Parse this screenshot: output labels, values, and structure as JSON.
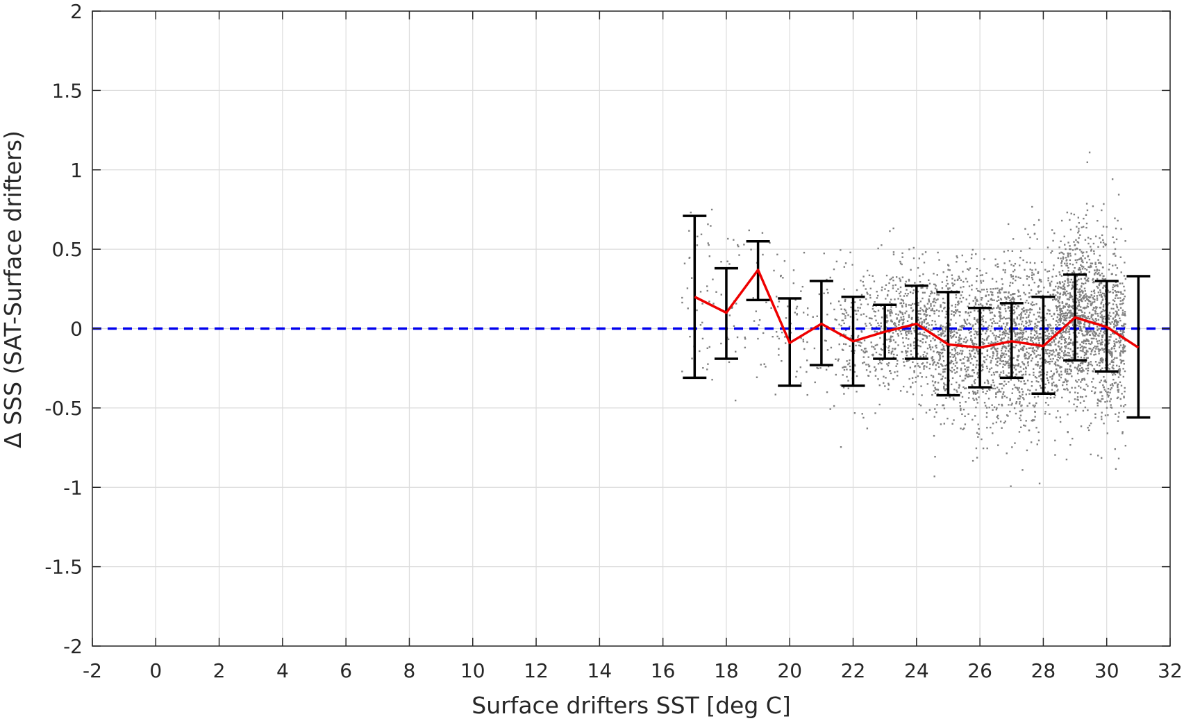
{
  "chart_data": {
    "type": "scatter",
    "xlabel": "Surface drifters SST [deg C]",
    "ylabel": "Δ SSS (SAT-Surface drifters)",
    "xlim": [
      -2,
      32
    ],
    "ylim": [
      -2,
      2
    ],
    "x_ticks": [
      "-2",
      "0",
      "2",
      "4",
      "6",
      "8",
      "10",
      "12",
      "14",
      "16",
      "18",
      "20",
      "22",
      "24",
      "26",
      "28",
      "30",
      "32"
    ],
    "y_ticks": [
      "2",
      "1.5",
      "1",
      "0.5",
      "0",
      "-0.5",
      "-1",
      "-1.5",
      "-2"
    ],
    "grid": true,
    "reference_line": {
      "y": 0,
      "style": "dashed",
      "color": "#0000ee"
    },
    "scatter_color": "#808080",
    "scatter_cloud": [
      {
        "x": [
          16.6,
          17.6
        ],
        "y_mean": 0.3,
        "y_sd": 0.35,
        "density": 0.04
      },
      {
        "x": [
          17.6,
          19.6
        ],
        "y_mean": 0.15,
        "y_sd": 0.25,
        "density": 0.05
      },
      {
        "x": [
          19.6,
          21.6
        ],
        "y_mean": 0.0,
        "y_sd": 0.22,
        "density": 0.08
      },
      {
        "x": [
          21.6,
          23.0
        ],
        "y_mean": -0.05,
        "y_sd": 0.2,
        "density": 0.2
      },
      {
        "x": [
          23.0,
          24.5
        ],
        "y_mean": 0.0,
        "y_sd": 0.2,
        "density": 0.4
      },
      {
        "x": [
          24.5,
          26.5
        ],
        "y_mean": -0.1,
        "y_sd": 0.25,
        "density": 0.7
      },
      {
        "x": [
          26.5,
          28.5
        ],
        "y_mean": -0.08,
        "y_sd": 0.27,
        "density": 0.9
      },
      {
        "x": [
          28.5,
          30.0
        ],
        "y_mean": 0.05,
        "y_sd": 0.28,
        "density": 1.0
      },
      {
        "x": [
          30.0,
          30.6
        ],
        "y_mean": -0.05,
        "y_sd": 0.3,
        "density": 0.3
      }
    ],
    "errorbars": {
      "color": "#000000",
      "x": [
        17,
        18,
        19,
        20,
        21,
        22,
        23,
        24,
        25,
        26,
        27,
        28,
        29,
        30,
        31
      ],
      "lower": [
        -0.31,
        -0.19,
        0.18,
        -0.36,
        -0.23,
        -0.36,
        -0.19,
        -0.19,
        -0.42,
        -0.37,
        -0.31,
        -0.41,
        -0.2,
        -0.27,
        -0.56
      ],
      "upper": [
        0.71,
        0.38,
        0.55,
        0.19,
        0.3,
        0.2,
        0.15,
        0.27,
        0.23,
        0.13,
        0.16,
        0.2,
        0.34,
        0.3,
        0.33
      ]
    },
    "mean_line": {
      "color": "#ee0000",
      "x": [
        17,
        18,
        19,
        20,
        21,
        22,
        23,
        24,
        25,
        26,
        27,
        28,
        29,
        30,
        31
      ],
      "y": [
        0.2,
        0.1,
        0.37,
        -0.09,
        0.03,
        -0.08,
        -0.02,
        0.03,
        -0.1,
        -0.12,
        -0.08,
        -0.11,
        0.07,
        0.01,
        -0.12
      ]
    }
  }
}
